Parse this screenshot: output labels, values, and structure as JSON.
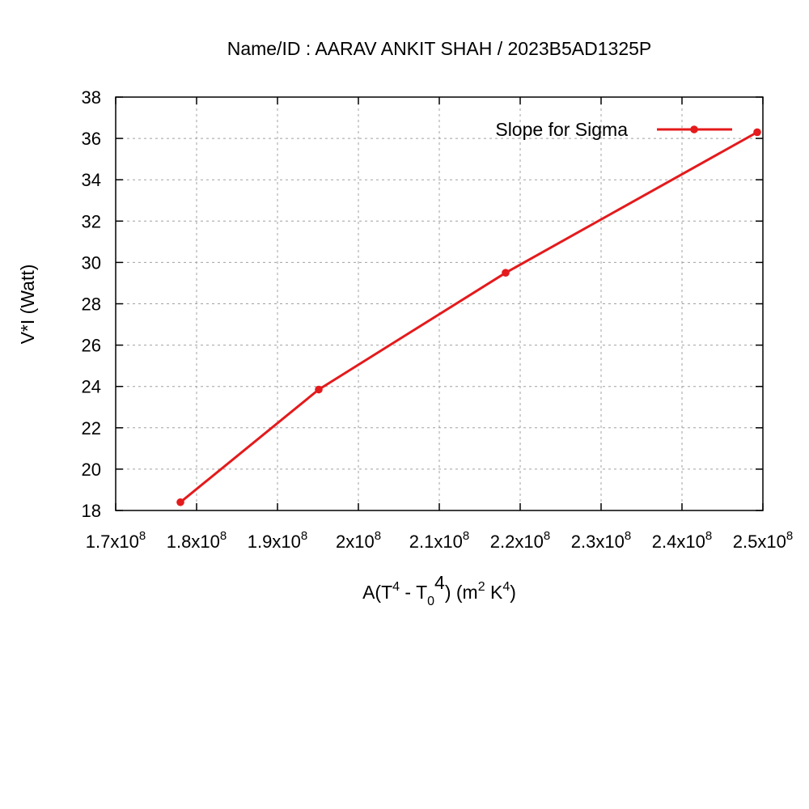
{
  "chart_data": {
    "type": "line",
    "title": "Name/ID : AARAV ANKIT SHAH / 2023B5AD1325P",
    "xlabel": {
      "base": "A(T",
      "sup1": "4",
      "mid": " - T",
      "sub": "0",
      "sup2": "4",
      "unit_open": ") (m",
      "sup3": "2",
      "unit_mid": " K",
      "sup4": "4",
      "unit_close": ")"
    },
    "ylabel": "V*I (Watt)",
    "xlim": [
      170000000,
      250000000
    ],
    "ylim": [
      18,
      38
    ],
    "x_ticks": [
      {
        "value": 170000000,
        "mant": "1.7x10",
        "exp": "8"
      },
      {
        "value": 180000000,
        "mant": "1.8x10",
        "exp": "8"
      },
      {
        "value": 190000000,
        "mant": "1.9x10",
        "exp": "8"
      },
      {
        "value": 200000000,
        "mant": "2x10",
        "exp": "8"
      },
      {
        "value": 210000000,
        "mant": "2.1x10",
        "exp": "8"
      },
      {
        "value": 220000000,
        "mant": "2.2x10",
        "exp": "8"
      },
      {
        "value": 230000000,
        "mant": "2.3x10",
        "exp": "8"
      },
      {
        "value": 240000000,
        "mant": "2.4x10",
        "exp": "8"
      },
      {
        "value": 250000000,
        "mant": "2.5x10",
        "exp": "8"
      }
    ],
    "y_ticks": [
      18,
      20,
      22,
      24,
      26,
      28,
      30,
      32,
      34,
      36,
      38
    ],
    "grid": true,
    "legend_position": "top-right",
    "series": [
      {
        "name": "Slope for Sigma",
        "color": "#e41a1c",
        "x": [
          178000000,
          195100000,
          218200000,
          249300000
        ],
        "y": [
          18.4,
          23.85,
          29.5,
          36.3
        ]
      }
    ]
  }
}
